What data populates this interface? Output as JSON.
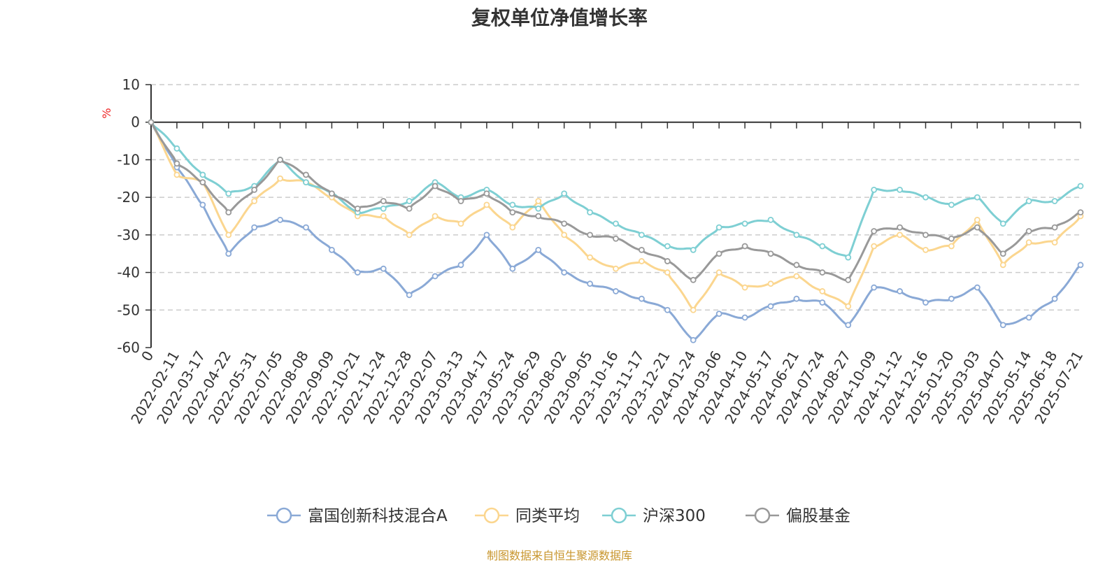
{
  "title": "复权单位净值增长率",
  "source_note": "制图数据来自恒生聚源数据库",
  "chart_data": {
    "type": "line",
    "ylabel": "%",
    "ylim": [
      -60,
      10
    ],
    "yticks": [
      10,
      0,
      -10,
      -20,
      -30,
      -40,
      -50,
      -60
    ],
    "grid": true,
    "legend_position": "bottom",
    "x_start_label": "0",
    "x_labels": [
      "2022-02-11",
      "2022-03-17",
      "2022-04-22",
      "2022-05-31",
      "2022-07-05",
      "2022-08-08",
      "2022-09-09",
      "2022-10-21",
      "2022-11-24",
      "2022-12-28",
      "2023-02-07",
      "2023-03-13",
      "2023-04-17",
      "2023-05-24",
      "2023-06-29",
      "2023-08-02",
      "2023-09-05",
      "2023-10-16",
      "2023-11-17",
      "2023-12-21",
      "2024-01-24",
      "2024-03-06",
      "2024-04-10",
      "2024-05-17",
      "2024-06-21",
      "2024-07-24",
      "2024-08-27",
      "2024-10-09",
      "2024-11-12",
      "2024-12-16",
      "2025-01-20",
      "2025-03-03",
      "2025-04-07",
      "2025-05-14",
      "2025-06-18",
      "2025-07-21"
    ],
    "series": [
      {
        "name": "富国创新科技混合A",
        "color": "#8aa9d6",
        "values": [
          0,
          -12,
          -22,
          -35,
          -28,
          -26,
          -28,
          -34,
          -40,
          -39,
          -46,
          -41,
          -38,
          -30,
          -39,
          -34,
          -40,
          -43,
          -45,
          -47,
          -50,
          -58,
          -51,
          -52,
          -49,
          -47,
          -48,
          -54,
          -44,
          -45,
          -48,
          -47,
          -44,
          -54,
          -52,
          -47,
          -38
        ]
      },
      {
        "name": "同类平均",
        "color": "#fbd68f",
        "values": [
          0,
          -14,
          -16,
          -30,
          -21,
          -15,
          -16,
          -20,
          -25,
          -25,
          -30,
          -25,
          -27,
          -22,
          -28,
          -21,
          -30,
          -36,
          -39,
          -37,
          -40,
          -50,
          -40,
          -44,
          -43,
          -41,
          -45,
          -49,
          -33,
          -30,
          -34,
          -33,
          -26,
          -38,
          -32,
          -32,
          -25
        ]
      },
      {
        "name": "沪深300",
        "color": "#7ecfd3",
        "values": [
          0,
          -7,
          -14,
          -19,
          -17,
          -10,
          -16,
          -19,
          -24,
          -23,
          -21,
          -16,
          -20,
          -18,
          -22,
          -23,
          -19,
          -24,
          -27,
          -30,
          -33,
          -34,
          -28,
          -27,
          -26,
          -30,
          -33,
          -36,
          -18,
          -18,
          -20,
          -22,
          -20,
          -27,
          -21,
          -21,
          -17
        ]
      },
      {
        "name": "偏股基金",
        "color": "#999999",
        "values": [
          0,
          -11,
          -16,
          -24,
          -18,
          -10,
          -14,
          -19,
          -23,
          -21,
          -23,
          -17,
          -21,
          -19,
          -24,
          -25,
          -27,
          -30,
          -31,
          -34,
          -37,
          -42,
          -35,
          -33,
          -35,
          -38,
          -40,
          -42,
          -29,
          -28,
          -30,
          -31,
          -28,
          -35,
          -29,
          -28,
          -24
        ]
      }
    ]
  }
}
